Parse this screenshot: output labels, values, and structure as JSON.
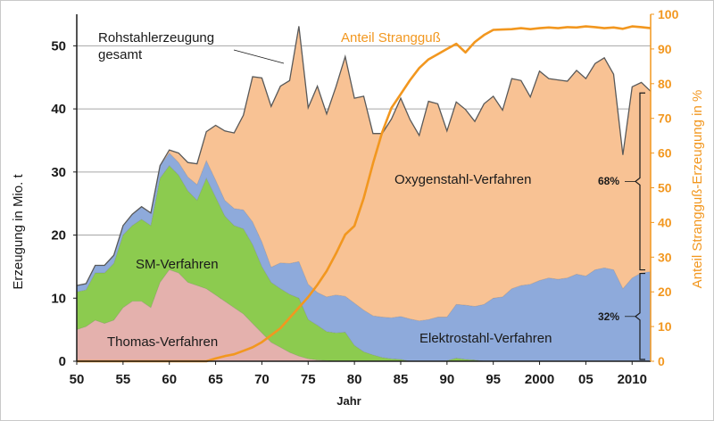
{
  "chart_data": {
    "type": "area",
    "xlabel": "Jahr",
    "ylabel": "Erzeugung in Mio. t",
    "y2label": "Anteil Strangguß-Erzeugung in %",
    "xlim": [
      1950,
      2012
    ],
    "ylim": [
      0,
      55
    ],
    "y2lim": [
      0,
      100
    ],
    "grid": "horizontal",
    "x_ticks": [
      50,
      55,
      60,
      65,
      70,
      75,
      80,
      85,
      90,
      95,
      2000,
      "05",
      2010
    ],
    "y_ticks": [
      0,
      10,
      20,
      30,
      40,
      50
    ],
    "y2_ticks": [
      0,
      10,
      20,
      30,
      40,
      50,
      60,
      70,
      80,
      90,
      100
    ],
    "x": [
      1950,
      1951,
      1952,
      1953,
      1954,
      1955,
      1956,
      1957,
      1958,
      1959,
      1960,
      1961,
      1962,
      1963,
      1964,
      1965,
      1966,
      1967,
      1968,
      1969,
      1970,
      1971,
      1972,
      1973,
      1974,
      1975,
      1976,
      1977,
      1978,
      1979,
      1980,
      1981,
      1982,
      1983,
      1984,
      1985,
      1986,
      1987,
      1988,
      1989,
      1990,
      1991,
      1992,
      1993,
      1994,
      1995,
      1996,
      1997,
      1998,
      1999,
      2000,
      2001,
      2002,
      2003,
      2004,
      2005,
      2006,
      2007,
      2008,
      2009,
      2010,
      2011,
      2012
    ],
    "series": [
      {
        "name": "Thomas-Verfahren",
        "color": "#e4b1ad",
        "values": [
          5.0,
          5.5,
          6.5,
          6.0,
          6.5,
          8.5,
          9.5,
          9.5,
          8.5,
          12.5,
          14.5,
          14.0,
          12.5,
          12.0,
          11.5,
          10.5,
          9.5,
          8.5,
          7.5,
          6.0,
          4.5,
          3.0,
          2.2,
          1.4,
          0.8,
          0.4,
          0.2,
          0.1,
          0,
          0,
          0,
          0,
          0,
          0,
          0,
          0,
          0,
          0,
          0,
          0,
          0,
          0,
          0,
          0,
          0,
          0,
          0,
          0,
          0,
          0,
          0,
          0,
          0,
          0,
          0,
          0,
          0,
          0,
          0,
          0,
          0,
          0,
          0
        ]
      },
      {
        "name": "SM-Verfahren",
        "color": "#8ccb4f",
        "values": [
          6.0,
          5.8,
          7.5,
          8.0,
          9.0,
          11.5,
          12.0,
          13.0,
          13.0,
          16.5,
          16.5,
          15.5,
          14.5,
          13.5,
          17.5,
          15.5,
          13.5,
          13.0,
          13.5,
          12.5,
          10.5,
          9.5,
          9.3,
          9.2,
          9.2,
          6.2,
          5.5,
          4.6,
          4.5,
          4.6,
          2.5,
          1.5,
          1.0,
          0.6,
          0.4,
          0.3,
          0,
          0,
          0,
          0,
          0.1,
          0.5,
          0.3,
          0.2,
          0,
          0,
          0,
          0,
          0,
          0,
          0,
          0,
          0,
          0,
          0,
          0,
          0,
          0,
          0,
          0,
          0,
          0,
          0
        ]
      },
      {
        "name": "Elektrostahl-Verfahren",
        "color": "#8eaadb",
        "values": [
          1.0,
          1.0,
          1.2,
          1.2,
          1.3,
          1.5,
          1.8,
          2.0,
          2.0,
          2.0,
          2.0,
          2.0,
          2.2,
          2.5,
          2.8,
          2.7,
          2.5,
          2.7,
          3.0,
          3.6,
          3.9,
          2.4,
          4.1,
          4.9,
          5.8,
          5.6,
          5.2,
          5.5,
          6.0,
          5.7,
          6.7,
          6.6,
          6.2,
          6.4,
          6.5,
          6.8,
          6.7,
          6.4,
          6.6,
          7.0,
          6.9,
          8.5,
          8.6,
          8.5,
          9.0,
          10.0,
          10.2,
          11.5,
          12.0,
          12.2,
          12.8,
          13.2,
          13.0,
          13.2,
          13.8,
          13.5,
          14.5,
          14.8,
          14.5,
          11.5,
          13.2,
          14.0,
          14.2
        ]
      },
      {
        "name": "Oxygenstahl-Verfahren",
        "color": "#f8c294",
        "values": [
          0,
          0,
          0,
          0,
          0,
          0,
          0,
          0,
          0,
          0,
          0.5,
          1.5,
          2.3,
          3.3,
          4.6,
          8.7,
          11.0,
          12.0,
          15.0,
          23.0,
          26.0,
          25.5,
          28.0,
          29.0,
          37.3,
          28.0,
          32.7,
          29.0,
          33.0,
          38.0,
          32.5,
          33.9,
          28.9,
          29.1,
          31.5,
          34.6,
          31.6,
          29.4,
          34.6,
          33.8,
          29.5,
          32.1,
          31.0,
          29.3,
          31.8,
          32.0,
          29.6,
          33.3,
          32.5,
          29.7,
          33.2,
          31.6,
          31.6,
          31.2,
          32.3,
          31.3,
          32.7,
          33.3,
          31.0,
          21.2,
          30.3,
          30.2,
          28.6
        ]
      }
    ],
    "total": {
      "name": "Rohstahlerzeugung gesamt",
      "color": "#595959"
    },
    "line": {
      "name": "Anteil Strangguß",
      "axis": "right",
      "color": "#f2971f",
      "x": [
        1964,
        1965,
        1966,
        1967,
        1968,
        1969,
        1970,
        1971,
        1972,
        1973,
        1974,
        1975,
        1976,
        1977,
        1978,
        1979,
        1980,
        1981,
        1982,
        1983,
        1984,
        1985,
        1986,
        1987,
        1988,
        1989,
        1990,
        1991,
        1992,
        1993,
        1994,
        1995,
        1996,
        1997,
        1998,
        1999,
        2000,
        2001,
        2002,
        2003,
        2004,
        2005,
        2006,
        2007,
        2008,
        2009,
        2010,
        2011,
        2012
      ],
      "values": [
        0,
        0.8,
        1.5,
        2.0,
        3.0,
        4.0,
        5.5,
        7.5,
        9.5,
        12.5,
        15.5,
        18.5,
        22.0,
        26.0,
        31.0,
        36.5,
        39.0,
        47.0,
        57.0,
        66.0,
        73.0,
        77.0,
        81.0,
        84.5,
        87.0,
        88.5,
        90.0,
        91.5,
        89.0,
        92.0,
        94.0,
        95.5,
        95.6,
        95.7,
        96.0,
        95.7,
        96.0,
        96.2,
        96.0,
        96.3,
        96.2,
        96.5,
        96.3,
        96.0,
        96.2,
        95.8,
        96.5,
        96.3,
        96.0
      ]
    },
    "annotations": {
      "total_label_1": "Rohstahlerzeugung",
      "total_label_2": "gesamt",
      "line_label": "Anteil Strangguß",
      "thomas_label": "Thomas-Verfahren",
      "sm_label": "SM-Verfahren",
      "oxygen_label": "Oxygenstahl-Verfahren",
      "electro_label": "Elektrostahl-Verfahren",
      "oxygen_share": "68%",
      "electro_share": "32%"
    }
  }
}
